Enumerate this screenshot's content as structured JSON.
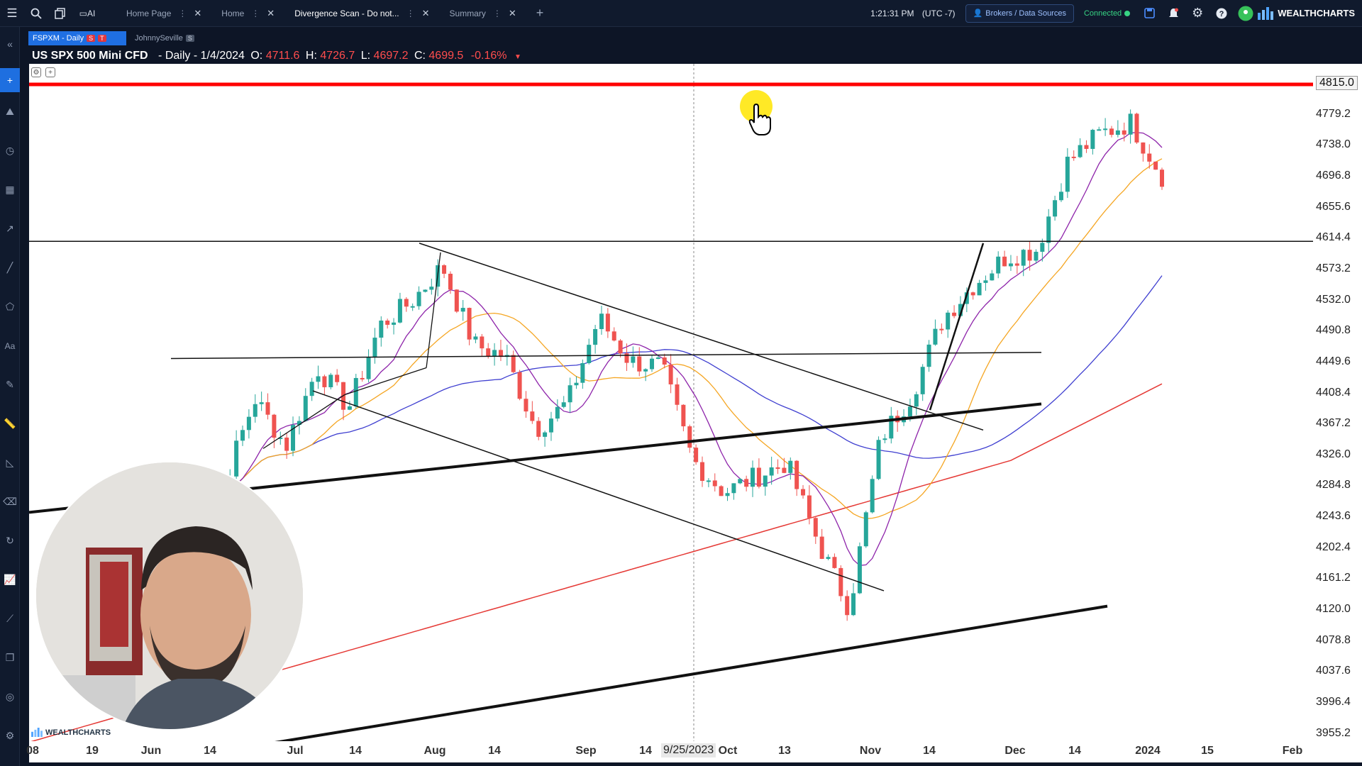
{
  "topbar": {
    "tabs": [
      {
        "label": "Home Page",
        "active": false
      },
      {
        "label": "Home",
        "active": false
      },
      {
        "label": "Divergence Scan - Do not...",
        "active": true
      },
      {
        "label": "Summary",
        "active": false
      }
    ],
    "time": "1:21:31 PM",
    "timezone": "(UTC -7)",
    "brokers_label": "Brokers / Data Sources",
    "status": "Connected",
    "brand": "WEALTHCHARTS",
    "icons": [
      "menu-icon",
      "search-icon",
      "layers-icon",
      "ai-icon",
      "add-tab-icon",
      "save-icon",
      "bell-icon",
      "gear-icon",
      "help-icon",
      "location-icon"
    ]
  },
  "symbol_tabs": [
    {
      "label": "FSPXM - Daily",
      "badges": [
        "S",
        "T"
      ],
      "active": true
    },
    {
      "label": "JohnnySeville",
      "badges": [
        "S"
      ],
      "active": false
    }
  ],
  "ohlc": {
    "name": "US SPX 500 Mini CFD",
    "interval": "Daily",
    "date": "1/4/2024",
    "open_label": "O:",
    "open": "4711.6",
    "high_label": "H:",
    "high": "4726.7",
    "low_label": "L:",
    "low": "4697.2",
    "close_label": "C:",
    "close": "4699.5",
    "change": "-0.16%"
  },
  "price_tag": "4815.0",
  "date_tag": "9/25/2023",
  "watermark": "WEALTHCHARTS",
  "colors": {
    "accent": "#1f6fe2",
    "up": "#26a69a",
    "down": "#ef5350",
    "ma_fast": "#8e24aa",
    "ma_mid": "#f5a623",
    "ma_slow": "#3f3fd0",
    "ma_long": "#e53935",
    "resistance": "#ff0000"
  },
  "y_axis": [
    "4815.0",
    "4779.2",
    "4738.0",
    "4696.8",
    "4655.6",
    "4614.4",
    "4573.2",
    "4532.0",
    "4490.8",
    "4449.6",
    "4408.4",
    "4367.2",
    "4326.0",
    "4284.8",
    "4243.6",
    "4202.4",
    "4161.2",
    "4120.0",
    "4078.8",
    "4037.6",
    "3996.4",
    "3955.2"
  ],
  "x_axis": [
    "08",
    "19",
    "Jun",
    "14",
    "Jul",
    "14",
    "Aug",
    "14",
    "Sep",
    "14",
    "Oct",
    "13",
    "Nov",
    "14",
    "Dec",
    "14",
    "2024",
    "15",
    "Feb"
  ],
  "chart_data": {
    "type": "candlestick",
    "ylim": [
      3955.2,
      4836.0
    ],
    "resistance_level": 4815.0,
    "support_line": 4614.4,
    "x_ticks": [
      "Jun",
      "Jul",
      "Aug",
      "Sep",
      "Oct",
      "Nov",
      "Dec",
      "2024",
      "Feb"
    ],
    "close_path": [
      [
        "Jun 02",
        4282
      ],
      [
        "Jun 09",
        4298
      ],
      [
        "Jun 16",
        4410
      ],
      [
        "Jun 23",
        4348
      ],
      [
        "Jun 30",
        4450
      ],
      [
        "Jul 07",
        4398
      ],
      [
        "Jul 14",
        4505
      ],
      [
        "Jul 21",
        4536
      ],
      [
        "Jul 28",
        4582
      ],
      [
        "Aug 04",
        4480
      ],
      [
        "Aug 11",
        4465
      ],
      [
        "Aug 18",
        4370
      ],
      [
        "Aug 25",
        4405
      ],
      [
        "Sep 01",
        4515
      ],
      [
        "Sep 08",
        4458
      ],
      [
        "Sep 15",
        4452
      ],
      [
        "Sep 22",
        4330
      ],
      [
        "Sep 29",
        4288
      ],
      [
        "Oct 06",
        4308
      ],
      [
        "Oct 13",
        4327
      ],
      [
        "Oct 20",
        4224
      ],
      [
        "Oct 27",
        4137
      ],
      [
        "Nov 03",
        4358
      ],
      [
        "Nov 10",
        4415
      ],
      [
        "Nov 17",
        4515
      ],
      [
        "Nov 24",
        4559
      ],
      [
        "Dec 01",
        4594
      ],
      [
        "Dec 08",
        4604
      ],
      [
        "Dec 15",
        4719
      ],
      [
        "Dec 22",
        4754
      ],
      [
        "Dec 29",
        4769
      ],
      [
        "Jan 04",
        4699.5
      ]
    ]
  }
}
